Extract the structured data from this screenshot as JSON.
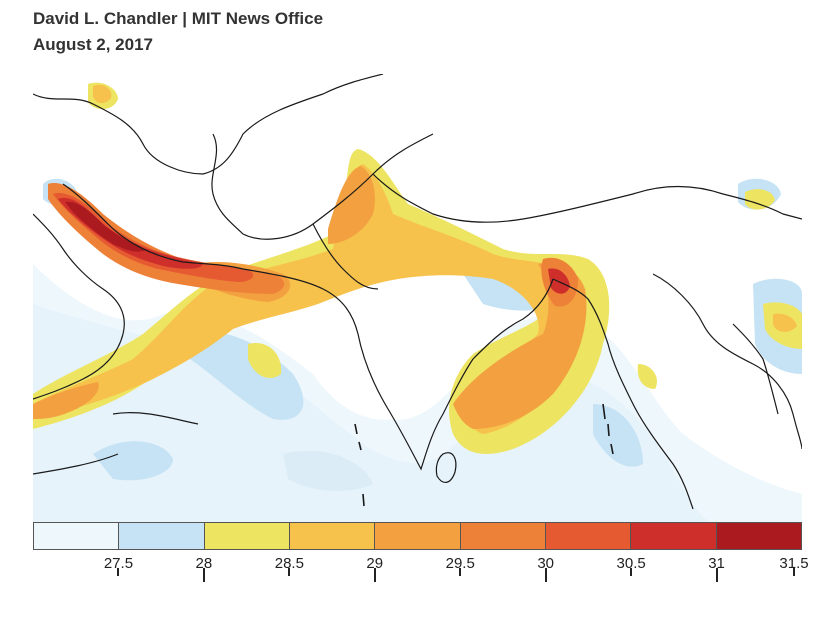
{
  "byline": {
    "author": "David L. Chandler | MIT News Office",
    "date": "August 2, 2017"
  },
  "map": {
    "region": "Persian Gulf, Arabian Sea, Indian subcontinent, Bay of Bengal, Southeast Asia",
    "background_color": "#ffffff",
    "border_color": "#1a1a1a"
  },
  "legend": {
    "bins": [
      {
        "color": "#eef7fc"
      },
      {
        "color": "#c5e3f4"
      },
      {
        "color": "#ede461"
      },
      {
        "color": "#f6c24c"
      },
      {
        "color": "#f2a040"
      },
      {
        "color": "#ee8138"
      },
      {
        "color": "#e65a32"
      },
      {
        "color": "#cf2f2b"
      },
      {
        "color": "#aa1a1f"
      }
    ],
    "tick_labels": [
      "27.5",
      "28",
      "28.5",
      "29",
      "29.5",
      "30",
      "30.5",
      "31",
      "31.5"
    ]
  }
}
